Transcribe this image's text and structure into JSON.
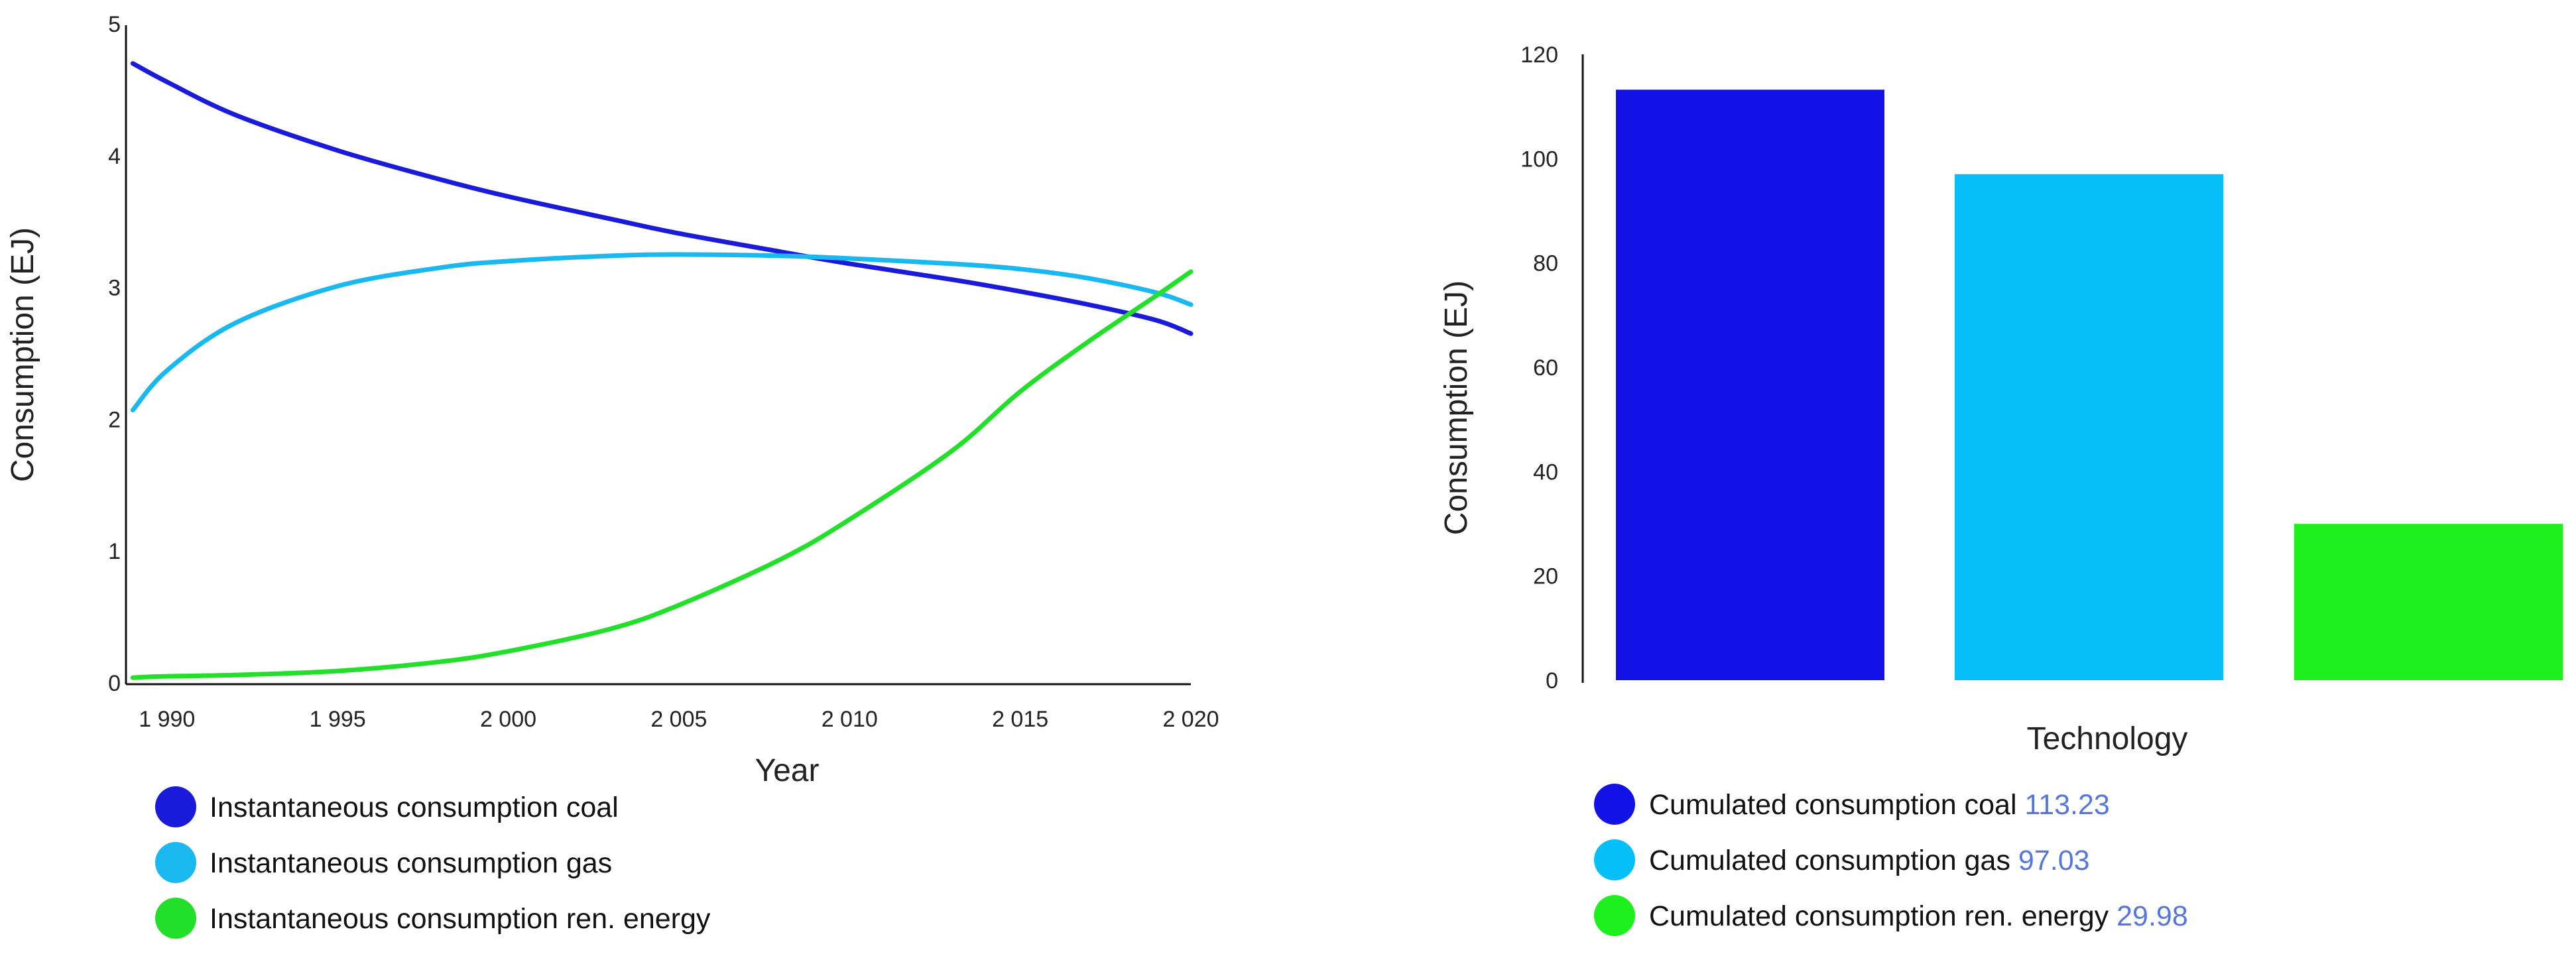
{
  "chart_data": [
    {
      "type": "line",
      "title": "",
      "xlabel": "Year",
      "ylabel": "Consumption (EJ)",
      "xlim": [
        1988.8,
        2020
      ],
      "ylim": [
        0,
        5
      ],
      "x_ticks": [
        1990,
        1995,
        2000,
        2005,
        2010,
        2015,
        2020
      ],
      "x_tick_labels": [
        "1 990",
        "1 995",
        "2 000",
        "2 005",
        "2 010",
        "2 015",
        "2 020"
      ],
      "y_ticks": [
        0,
        1,
        2,
        3,
        4,
        5
      ],
      "y_tick_labels": [
        "0",
        "1",
        "2",
        "3",
        "4",
        "5"
      ],
      "x": [
        1989,
        1990,
        1992,
        1995,
        1998,
        2000,
        2003,
        2005,
        2008,
        2010,
        2013,
        2015,
        2017,
        2019,
        2020
      ],
      "series": [
        {
          "name": "Instantaneous consumption coal",
          "legend_label": "Instantaneous consumption coal",
          "color": "#1a1adb",
          "values": [
            4.71,
            4.57,
            4.32,
            4.05,
            3.83,
            3.7,
            3.53,
            3.42,
            3.28,
            3.19,
            3.07,
            2.98,
            2.88,
            2.76,
            2.66
          ]
        },
        {
          "name": "Instantaneous consumption gas",
          "legend_label": "Instantaneous consumption gas",
          "color": "#19b8f0",
          "values": [
            2.08,
            2.38,
            2.74,
            3.02,
            3.16,
            3.21,
            3.25,
            3.26,
            3.25,
            3.23,
            3.19,
            3.15,
            3.08,
            2.97,
            2.88
          ]
        },
        {
          "name": "Instantaneous consumption ren. energy",
          "legend_label": "Instantaneous consumption ren. energy",
          "color": "#22e02a",
          "values": [
            0.05,
            0.06,
            0.07,
            0.1,
            0.17,
            0.25,
            0.42,
            0.6,
            0.95,
            1.25,
            1.77,
            2.22,
            2.6,
            2.95,
            3.13
          ]
        }
      ]
    },
    {
      "type": "bar",
      "title": "",
      "xlabel": "Technology",
      "ylabel": "Consumption (EJ)",
      "ylim": [
        0,
        120
      ],
      "y_ticks": [
        0,
        20,
        40,
        60,
        80,
        100,
        120
      ],
      "y_tick_labels": [
        "0",
        "20",
        "40",
        "60",
        "80",
        "100",
        "120"
      ],
      "categories": [
        "coal",
        "gas",
        "ren. energy"
      ],
      "values": [
        113.23,
        97.03,
        29.98
      ],
      "colors": [
        "#1212e6",
        "#05bff8",
        "#1ef01e"
      ],
      "legend": [
        {
          "label": "Cumulated consumption coal",
          "value": "113.23",
          "color": "#1212e6"
        },
        {
          "label": "Cumulated consumption gas",
          "value": "97.03",
          "color": "#05bff8"
        },
        {
          "label": "Cumulated consumption ren. energy",
          "value": "29.98",
          "color": "#1ef01e"
        }
      ]
    }
  ]
}
